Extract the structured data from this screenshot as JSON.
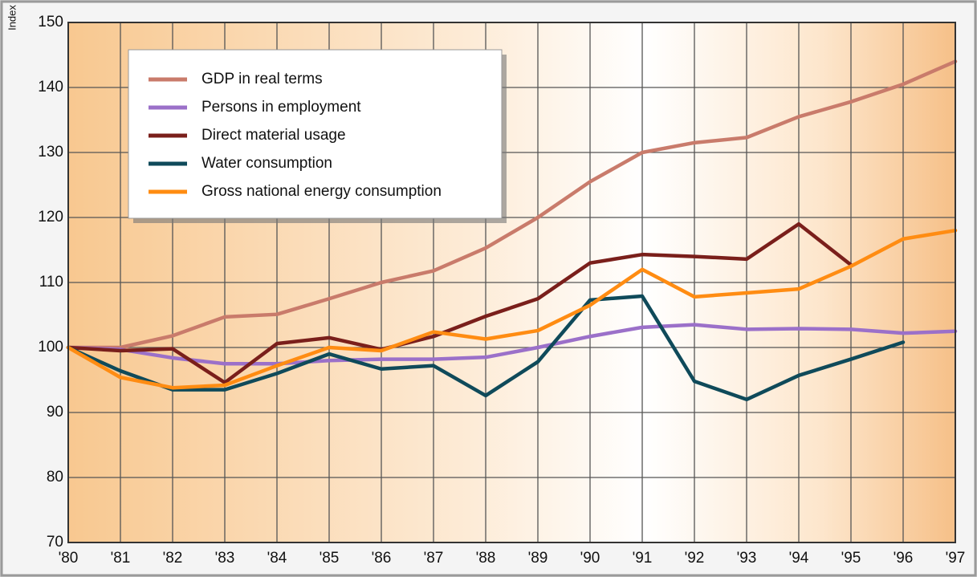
{
  "chart_data": {
    "type": "line",
    "y_axis_label": "Index",
    "categories": [
      "'80",
      "'81",
      "'82",
      "'83",
      "'84",
      "'85",
      "'86",
      "'87",
      "'88",
      "'89",
      "'90",
      "'91",
      "'92",
      "'93",
      "'94",
      "'95",
      "'96",
      "'97"
    ],
    "ylim": [
      70,
      150
    ],
    "yticks": [
      70,
      80,
      90,
      100,
      110,
      120,
      130,
      140,
      150
    ],
    "grid": true,
    "legend": "upper left",
    "series": [
      {
        "name": "GDP in real terms",
        "color": "#c97b6b",
        "values": [
          100,
          100,
          101.8,
          104.7,
          105.1,
          107.5,
          110,
          111.8,
          115.3,
          120,
          125.5,
          130,
          131.5,
          132.3,
          135.5,
          137.8,
          140.5,
          144
        ]
      },
      {
        "name": "Persons in employment",
        "color": "#9b70c9",
        "values": [
          100,
          99.7,
          98.4,
          97.5,
          97.5,
          98,
          98.2,
          98.2,
          98.5,
          100,
          101.7,
          103.1,
          103.5,
          102.8,
          102.9,
          102.8,
          102.2,
          102.5
        ]
      },
      {
        "name": "Direct material usage",
        "color": "#7a1f1b",
        "values": [
          100,
          99.5,
          99.8,
          94.6,
          100.6,
          101.5,
          99.7,
          101.7,
          104.8,
          107.5,
          113,
          114.3,
          114,
          113.6,
          119,
          112.7,
          null,
          null
        ]
      },
      {
        "name": "Water consumption",
        "color": "#0f4a5a",
        "values": [
          100,
          96.4,
          93.5,
          93.5,
          96,
          99,
          96.7,
          97.2,
          92.6,
          97.8,
          107.3,
          107.9,
          94.8,
          92,
          95.7,
          98.2,
          100.8,
          null
        ]
      },
      {
        "name": "Gross national energy consumption",
        "color": "#ff8c12",
        "values": [
          100,
          95.4,
          93.8,
          94.2,
          97.2,
          100,
          99.5,
          102.4,
          101.3,
          102.6,
          106.5,
          112,
          107.8,
          108.4,
          109,
          112.5,
          116.7,
          118
        ]
      }
    ]
  }
}
